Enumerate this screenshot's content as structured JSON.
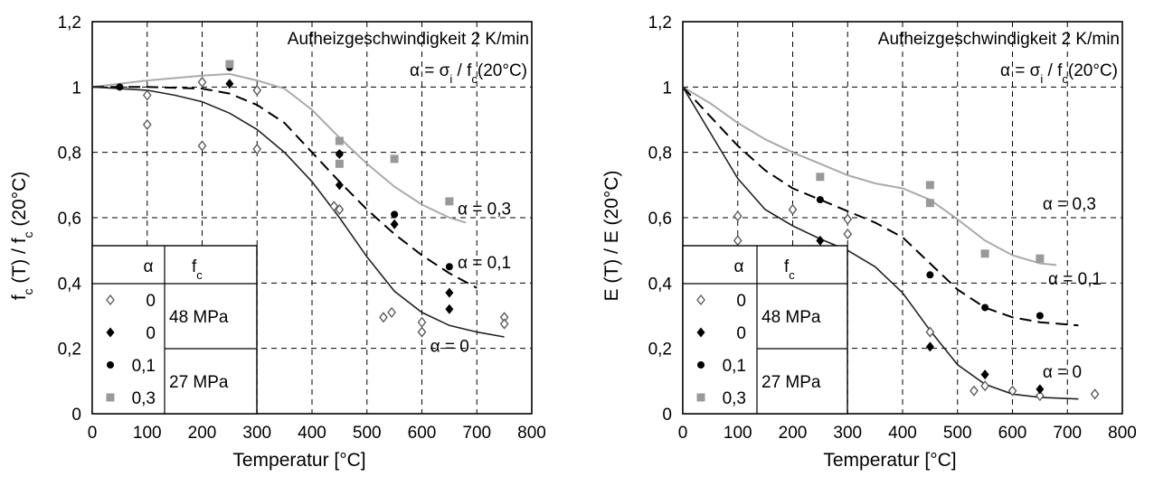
{
  "chart_data": [
    {
      "type": "scatter",
      "title": "",
      "xlabel": "Temperatur [°C]",
      "ylabel": "f_c (T) / f_c (20°C)",
      "ylabel_parts": [
        "f",
        "c",
        " (T) / f",
        "c",
        " (20°C)"
      ],
      "xlim": [
        0,
        800
      ],
      "ylim": [
        0,
        1.2
      ],
      "xticks": [
        "0",
        "100",
        "200",
        "300",
        "400",
        "500",
        "600",
        "700",
        "800"
      ],
      "yticks": [
        "0",
        "0,2",
        "0,4",
        "0,6",
        "0,8",
        "1",
        "1,2"
      ],
      "grid": "dashed",
      "annotations": {
        "heating": "Aufheizgeschwindigkeit 2 K/min",
        "alpha_def_prefix": "α = σ",
        "alpha_def_sub1": "i",
        "alpha_def_mid": " / f",
        "alpha_def_sub2": "c",
        "alpha_def_suffix": "(20°C)"
      },
      "legend": {
        "header_alpha": "α",
        "header_fc": "f",
        "header_fc_sub": "c",
        "rows": [
          {
            "marker": "open-diamond",
            "alpha": "0"
          },
          {
            "marker": "filled-diamond",
            "alpha": "0"
          },
          {
            "marker": "filled-circle",
            "alpha": "0,1"
          },
          {
            "marker": "gray-square",
            "alpha": "0,3"
          }
        ],
        "strengths": [
          "48 MPa",
          "27 MPa"
        ]
      },
      "series": [
        {
          "marker": "open-diamond",
          "color": "#555555",
          "points": [
            [
              100,
              0.975
            ],
            [
              100,
              0.885
            ],
            [
              200,
              1.015
            ],
            [
              200,
              0.82
            ],
            [
              300,
              0.99
            ],
            [
              300,
              0.81
            ],
            [
              440,
              0.635
            ],
            [
              450,
              0.625
            ],
            [
              530,
              0.295
            ],
            [
              545,
              0.31
            ],
            [
              600,
              0.28
            ],
            [
              600,
              0.25
            ],
            [
              750,
              0.295
            ],
            [
              750,
              0.275
            ]
          ]
        },
        {
          "marker": "filled-diamond",
          "color": "#000000",
          "points": [
            [
              250,
              1.01
            ],
            [
              450,
              0.7
            ],
            [
              450,
              0.795
            ],
            [
              550,
              0.58
            ],
            [
              650,
              0.37
            ],
            [
              650,
              0.32
            ]
          ]
        },
        {
          "marker": "filled-circle",
          "color": "#000000",
          "points": [
            [
              50,
              1.0
            ],
            [
              250,
              1.06
            ],
            [
              450,
              0.795
            ],
            [
              550,
              0.61
            ],
            [
              650,
              0.45
            ]
          ]
        },
        {
          "marker": "gray-square",
          "color": "#999999",
          "points": [
            [
              250,
              1.07
            ],
            [
              450,
              0.835
            ],
            [
              450,
              0.765
            ],
            [
              550,
              0.78
            ],
            [
              650,
              0.65
            ]
          ]
        }
      ],
      "curves": [
        {
          "label": "α = 0,3",
          "style": "solid-gray",
          "color": "#aaaaaa",
          "points": [
            [
              0,
              1.0
            ],
            [
              100,
              1.02
            ],
            [
              200,
              1.035
            ],
            [
              250,
              1.04
            ],
            [
              300,
              1.02
            ],
            [
              350,
              0.995
            ],
            [
              400,
              0.93
            ],
            [
              450,
              0.845
            ],
            [
              500,
              0.765
            ],
            [
              550,
              0.695
            ],
            [
              600,
              0.64
            ],
            [
              650,
              0.6
            ],
            [
              680,
              0.585
            ]
          ]
        },
        {
          "label": "α = 0,1",
          "style": "dashed-black",
          "color": "#000000",
          "points": [
            [
              0,
              1.0
            ],
            [
              100,
              1.0
            ],
            [
              200,
              0.995
            ],
            [
              250,
              0.98
            ],
            [
              300,
              0.945
            ],
            [
              350,
              0.89
            ],
            [
              400,
              0.8
            ],
            [
              450,
              0.71
            ],
            [
              500,
              0.625
            ],
            [
              550,
              0.55
            ],
            [
              600,
              0.485
            ],
            [
              650,
              0.43
            ],
            [
              700,
              0.385
            ]
          ]
        },
        {
          "label": "α = 0",
          "style": "solid-black",
          "color": "#222222",
          "points": [
            [
              0,
              1.0
            ],
            [
              100,
              0.99
            ],
            [
              150,
              0.975
            ],
            [
              200,
              0.955
            ],
            [
              250,
              0.92
            ],
            [
              300,
              0.87
            ],
            [
              350,
              0.8
            ],
            [
              400,
              0.71
            ],
            [
              450,
              0.6
            ],
            [
              500,
              0.48
            ],
            [
              550,
              0.375
            ],
            [
              600,
              0.31
            ],
            [
              650,
              0.27
            ],
            [
              700,
              0.25
            ],
            [
              750,
              0.235
            ]
          ]
        }
      ],
      "curve_labels": [
        {
          "text": "α = 0,3",
          "x": 665,
          "y": 0.61
        },
        {
          "text": "α = 0,1",
          "x": 665,
          "y": 0.445
        },
        {
          "text": "α = 0",
          "x": 615,
          "y": 0.19
        }
      ]
    },
    {
      "type": "scatter",
      "title": "",
      "xlabel": "Temperatur [°C]",
      "ylabel": "E (T) / E (20°C)",
      "ylabel_parts": [
        "E (T) / E (20°C)",
        "",
        "",
        "",
        ""
      ],
      "xlim": [
        0,
        800
      ],
      "ylim": [
        0,
        1.2
      ],
      "xticks": [
        "0",
        "100",
        "200",
        "300",
        "400",
        "500",
        "600",
        "700",
        "800"
      ],
      "yticks": [
        "0",
        "0,2",
        "0,4",
        "0,6",
        "0,8",
        "1",
        "1,2"
      ],
      "grid": "dashed",
      "annotations": {
        "heating": "Aufheizgeschwindigkeit 2 K/min",
        "alpha_def_prefix": "α = σ",
        "alpha_def_sub1": "i",
        "alpha_def_mid": " / f",
        "alpha_def_sub2": "c",
        "alpha_def_suffix": "(20°C)"
      },
      "legend": {
        "header_alpha": "α",
        "header_fc": "f",
        "header_fc_sub": "c",
        "rows": [
          {
            "marker": "open-diamond",
            "alpha": "0"
          },
          {
            "marker": "filled-diamond",
            "alpha": "0"
          },
          {
            "marker": "filled-circle",
            "alpha": "0,1"
          },
          {
            "marker": "gray-square",
            "alpha": "0,3"
          }
        ],
        "strengths": [
          "48 MPa",
          "27 MPa"
        ]
      },
      "series": [
        {
          "marker": "open-diamond",
          "color": "#555555",
          "points": [
            [
              100,
              0.605
            ],
            [
              100,
              0.53
            ],
            [
              200,
              0.625
            ],
            [
              300,
              0.595
            ],
            [
              300,
              0.55
            ],
            [
              450,
              0.25
            ],
            [
              530,
              0.07
            ],
            [
              550,
              0.085
            ],
            [
              600,
              0.07
            ],
            [
              650,
              0.055
            ],
            [
              750,
              0.06
            ]
          ]
        },
        {
          "marker": "filled-diamond",
          "color": "#000000",
          "points": [
            [
              250,
              0.53
            ],
            [
              450,
              0.205
            ],
            [
              550,
              0.12
            ],
            [
              650,
              0.075
            ]
          ]
        },
        {
          "marker": "filled-circle",
          "color": "#000000",
          "points": [
            [
              250,
              0.655
            ],
            [
              450,
              0.425
            ],
            [
              550,
              0.325
            ],
            [
              650,
              0.3
            ]
          ]
        },
        {
          "marker": "gray-square",
          "color": "#999999",
          "points": [
            [
              250,
              0.725
            ],
            [
              450,
              0.7
            ],
            [
              450,
              0.645
            ],
            [
              550,
              0.49
            ],
            [
              650,
              0.475
            ]
          ]
        }
      ],
      "curves": [
        {
          "label": "α = 0,3",
          "style": "solid-gray",
          "color": "#aaaaaa",
          "points": [
            [
              0,
              1.0
            ],
            [
              50,
              0.95
            ],
            [
              100,
              0.89
            ],
            [
              150,
              0.84
            ],
            [
              200,
              0.8
            ],
            [
              250,
              0.765
            ],
            [
              300,
              0.73
            ],
            [
              350,
              0.705
            ],
            [
              400,
              0.69
            ],
            [
              450,
              0.655
            ],
            [
              500,
              0.595
            ],
            [
              550,
              0.53
            ],
            [
              600,
              0.485
            ],
            [
              650,
              0.46
            ],
            [
              680,
              0.455
            ]
          ]
        },
        {
          "label": "α = 0,1",
          "style": "dashed-black",
          "color": "#000000",
          "points": [
            [
              0,
              1.0
            ],
            [
              50,
              0.91
            ],
            [
              100,
              0.82
            ],
            [
              150,
              0.745
            ],
            [
              200,
              0.69
            ],
            [
              250,
              0.655
            ],
            [
              300,
              0.62
            ],
            [
              350,
              0.585
            ],
            [
              400,
              0.54
            ],
            [
              450,
              0.46
            ],
            [
              500,
              0.38
            ],
            [
              550,
              0.325
            ],
            [
              600,
              0.295
            ],
            [
              650,
              0.28
            ],
            [
              720,
              0.27
            ]
          ]
        },
        {
          "label": "α = 0",
          "style": "solid-black",
          "color": "#222222",
          "points": [
            [
              0,
              1.0
            ],
            [
              50,
              0.86
            ],
            [
              100,
              0.72
            ],
            [
              150,
              0.625
            ],
            [
              200,
              0.575
            ],
            [
              250,
              0.535
            ],
            [
              300,
              0.5
            ],
            [
              350,
              0.45
            ],
            [
              400,
              0.37
            ],
            [
              450,
              0.255
            ],
            [
              500,
              0.15
            ],
            [
              550,
              0.09
            ],
            [
              600,
              0.06
            ],
            [
              650,
              0.05
            ],
            [
              720,
              0.045
            ]
          ]
        }
      ],
      "curve_labels": [
        {
          "text": "α = 0,3",
          "x": 655,
          "y": 0.625
        },
        {
          "text": "α = 0,1",
          "x": 665,
          "y": 0.395
        },
        {
          "text": "α = 0",
          "x": 655,
          "y": 0.11
        }
      ]
    }
  ]
}
